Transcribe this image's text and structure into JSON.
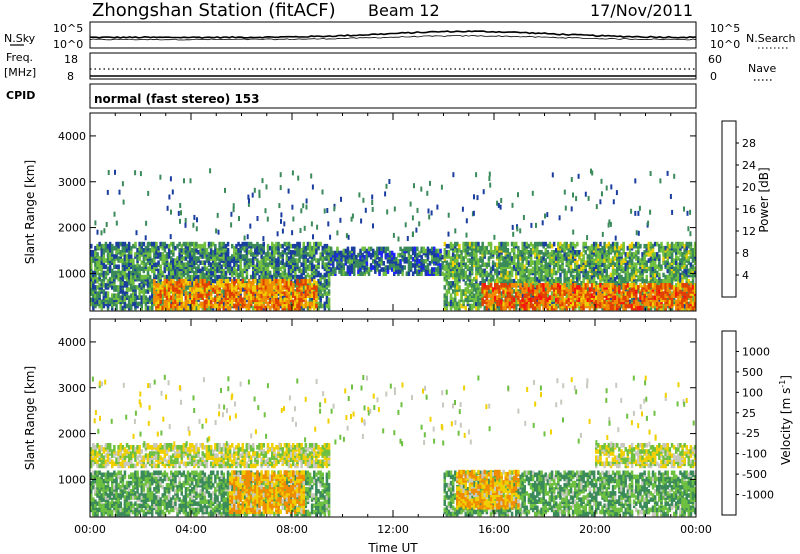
{
  "header": {
    "title": "Zhongshan Station (fitACF)",
    "beam": "Beam 12",
    "date": "17/Nov/2011"
  },
  "ancillary": {
    "nsky_label": "N.Sky",
    "nsky_ticks": [
      "10^5",
      "10^0"
    ],
    "nsearch_label": "N.Search",
    "nsearch_ticks": [
      "10^5",
      "10^0"
    ],
    "freq_label_1": "Freq.",
    "freq_label_2": "[MHz]",
    "freq_ticks": [
      "18",
      "8"
    ],
    "nave_label": "Nave",
    "nave_ticks": [
      "60",
      "0"
    ],
    "cpid_label": "CPID",
    "mode_text": "normal (fast stereo) 153"
  },
  "colors": {
    "power_scale": [
      "#2020ff",
      "#1a3ea0",
      "#3a8a5a",
      "#72c040",
      "#f0d000",
      "#f08c00",
      "#e04000",
      "#ff1010"
    ],
    "velocity_scale": [
      "#ff1010",
      "#e04000",
      "#f08c00",
      "#f0d000",
      "#c8c8be",
      "#6ec040",
      "#3a8a5a",
      "#1a3ea0",
      "#2020ff"
    ]
  },
  "chart_data": [
    {
      "type": "heatmap",
      "title": "",
      "xlabel": "",
      "ylabel": "Slant Range [km]",
      "xlim": [
        "00:00",
        "24:00"
      ],
      "ylim": [
        180,
        4500
      ],
      "yticks": [
        "1000",
        "2000",
        "3000",
        "4000"
      ],
      "colorbar_label": "Power [dB]",
      "colorbar_ticks": [
        "4",
        "8",
        "12",
        "16",
        "20",
        "24",
        "28"
      ],
      "colorbar_range": [
        0,
        32
      ],
      "bands": [
        {
          "start_h": 0.0,
          "end_h": 9.5,
          "range_low": 250,
          "range_high": 1700,
          "value": 10
        },
        {
          "start_h": 2.5,
          "end_h": 9.0,
          "range_low": 250,
          "range_high": 900,
          "value": 22
        },
        {
          "start_h": 9.5,
          "end_h": 14.0,
          "range_low": 1000,
          "range_high": 1600,
          "value": 8
        },
        {
          "start_h": 14.0,
          "end_h": 24.0,
          "range_low": 250,
          "range_high": 1700,
          "value": 12
        },
        {
          "start_h": 15.5,
          "end_h": 24.0,
          "range_low": 250,
          "range_high": 800,
          "value": 24
        }
      ]
    },
    {
      "type": "heatmap",
      "title": "",
      "xlabel": "Time UT",
      "ylabel": "Slant Range [km]",
      "xlim": [
        "00:00",
        "24:00"
      ],
      "ylim": [
        180,
        4500
      ],
      "xticks": [
        "00:00",
        "04:00",
        "08:00",
        "12:00",
        "16:00",
        "20:00",
        "00:00"
      ],
      "yticks": [
        "1000",
        "2000",
        "3000",
        "4000"
      ],
      "colorbar_label": "Velocity [m s^-1]",
      "colorbar_ticks": [
        "1000",
        "500",
        "100",
        "25",
        "-25",
        "-100",
        "-500",
        "-1000"
      ],
      "bands": [
        {
          "start_h": 0.0,
          "end_h": 9.5,
          "range_low": 250,
          "range_high": 1200,
          "value": 100
        },
        {
          "start_h": 0.0,
          "end_h": 9.5,
          "range_low": 1300,
          "range_high": 1800,
          "value": 0
        },
        {
          "start_h": 5.5,
          "end_h": 8.5,
          "range_low": 300,
          "range_high": 1200,
          "value": -100
        },
        {
          "start_h": 14.0,
          "end_h": 24.0,
          "range_low": 250,
          "range_high": 1200,
          "value": 100
        },
        {
          "start_h": 14.5,
          "end_h": 17.0,
          "range_low": 400,
          "range_high": 1200,
          "value": -100
        },
        {
          "start_h": 20.0,
          "end_h": 24.0,
          "range_low": 1300,
          "range_high": 1800,
          "value": 0
        }
      ]
    }
  ]
}
